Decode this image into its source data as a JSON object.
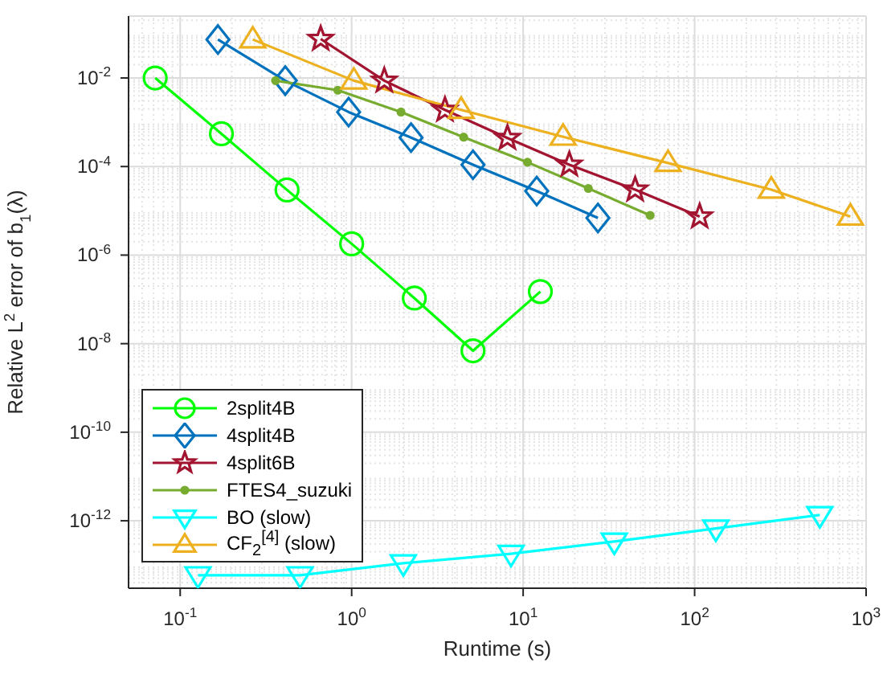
{
  "chart_data": {
    "type": "line",
    "xlabel": "Runtime (s)",
    "ylabel": "Relative L$^{2}$ error of b$_{1}$(λ)",
    "log": "xy",
    "grid": true,
    "legend": "bottom left",
    "line_style": "solid",
    "xlim": [
      0.05,
      1000
    ],
    "xticks": [
      {
        "value": 0.1,
        "label": "10$^{-1}$"
      },
      {
        "value": 1,
        "label": "10$^{0}$"
      },
      {
        "value": 10,
        "label": "10$^{1}$"
      },
      {
        "value": 100,
        "label": "10$^{2}$"
      },
      {
        "value": 1000,
        "label": "10$^{3}$"
      }
    ],
    "ylim": [
      3e-14,
      0.25
    ],
    "yticks": [
      {
        "value": 1e-12,
        "label": "10$^{-12}$"
      },
      {
        "value": 1e-10,
        "label": "10$^{-10}$"
      },
      {
        "value": 1e-08,
        "label": "10$^{-8}$"
      },
      {
        "value": 1e-06,
        "label": "10$^{-6}$"
      },
      {
        "value": 0.0001,
        "label": "10$^{-4}$"
      },
      {
        "value": 0.01,
        "label": "10$^{-2}$"
      }
    ],
    "series": [
      {
        "name": "2split4B",
        "color": "#00ff00",
        "marker": "circle",
        "x": [
          0.0715,
          0.174,
          0.42,
          1.0,
          2.32,
          5.1,
          12.6
        ],
        "values": [
          0.01,
          0.00055,
          2.96e-05,
          1.8e-06,
          1.07e-07,
          6.9e-09,
          1.5e-07
        ]
      },
      {
        "name": "4split4B",
        "color": "#0072bd",
        "marker": "diamond",
        "x": [
          0.166,
          0.41,
          0.96,
          2.22,
          5.1,
          12,
          27.3
        ],
        "values": [
          0.074,
          0.0087,
          0.0017,
          0.00045,
          0.00011,
          2.8e-05,
          6.9e-06
        ]
      },
      {
        "name": "4split6B",
        "color": "#a2142f",
        "marker": "star",
        "x": [
          0.66,
          1.55,
          3.5,
          8.1,
          18.6,
          45,
          107
        ],
        "values": [
          0.076,
          0.0087,
          0.0019,
          0.00044,
          0.00011,
          3e-05,
          7.4e-06
        ]
      },
      {
        "name": "FTES4_suzuki",
        "color": "#77ac30",
        "marker": "point",
        "x": [
          0.36,
          0.83,
          1.94,
          4.5,
          10.6,
          24,
          55
        ],
        "values": [
          0.0087,
          0.0053,
          0.0017,
          0.00046,
          0.000125,
          3.2e-05,
          7.9e-06
        ]
      },
      {
        "name": "BO (slow)",
        "color": "#00ffff",
        "marker": "triangle-down",
        "x": [
          0.127,
          0.5,
          2.0,
          8.5,
          34,
          133,
          537
        ],
        "values": [
          5.9e-14,
          5.9e-14,
          1.1e-13,
          1.8e-13,
          3.4e-13,
          6.7e-13,
          1.35e-12
        ]
      },
      {
        "name": "CF$_{2}$$^{[4]}$ (slow)",
        "color": "#edb120",
        "marker": "triangle",
        "x": [
          0.265,
          1.03,
          4.35,
          17.1,
          70,
          280,
          810
        ],
        "values": [
          0.074,
          0.0087,
          0.0019,
          0.00047,
          0.00012,
          3e-05,
          7.4e-06
        ]
      }
    ]
  }
}
